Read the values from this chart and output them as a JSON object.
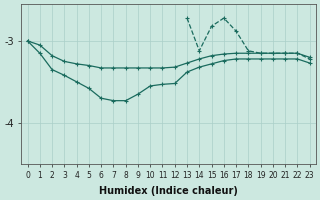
{
  "xlabel": "Humidex (Indice chaleur)",
  "xlim": [
    -0.5,
    23.5
  ],
  "ylim": [
    -4.5,
    -2.55
  ],
  "yticks": [
    -4,
    -3
  ],
  "xticks": [
    0,
    1,
    2,
    3,
    4,
    5,
    6,
    7,
    8,
    9,
    10,
    11,
    12,
    13,
    14,
    15,
    16,
    17,
    18,
    19,
    20,
    21,
    22,
    23
  ],
  "bg_color": "#cce8e0",
  "line_color": "#1a6b5e",
  "grid_major_color": "#aacfc8",
  "grid_minor_color": "#bcddd6",
  "line1_x": [
    0,
    1,
    2,
    3,
    4,
    5,
    6,
    7,
    8,
    9,
    10,
    11,
    12,
    13,
    14,
    15,
    16,
    17,
    18,
    19,
    20,
    21,
    22,
    23
  ],
  "line1_y": [
    -3.0,
    -3.05,
    -3.18,
    -3.25,
    -3.28,
    -3.3,
    -3.33,
    -3.33,
    -3.33,
    -3.33,
    -3.33,
    -3.33,
    -3.32,
    -3.27,
    -3.22,
    -3.18,
    -3.16,
    -3.15,
    -3.15,
    -3.15,
    -3.15,
    -3.15,
    -3.15,
    -3.2
  ],
  "line2_x": [
    0,
    1,
    2,
    3,
    4,
    5,
    6,
    7,
    8,
    9,
    10,
    11,
    12,
    13,
    14,
    15,
    16,
    17,
    18,
    19,
    20,
    21,
    22,
    23
  ],
  "line2_y": [
    -3.0,
    -3.15,
    -3.35,
    -3.42,
    -3.5,
    -3.58,
    -3.7,
    -3.73,
    -3.73,
    -3.65,
    -3.55,
    -3.53,
    -3.52,
    -3.38,
    -3.32,
    -3.28,
    -3.24,
    -3.22,
    -3.22,
    -3.22,
    -3.22,
    -3.22,
    -3.22,
    -3.27
  ],
  "line3_x": [
    13,
    14,
    15,
    16,
    17,
    18,
    19,
    20,
    21,
    22,
    23
  ],
  "line3_y": [
    -2.72,
    -3.12,
    -2.82,
    -2.72,
    -2.88,
    -3.12,
    -3.15,
    -3.15,
    -3.15,
    -3.15,
    -3.22
  ]
}
